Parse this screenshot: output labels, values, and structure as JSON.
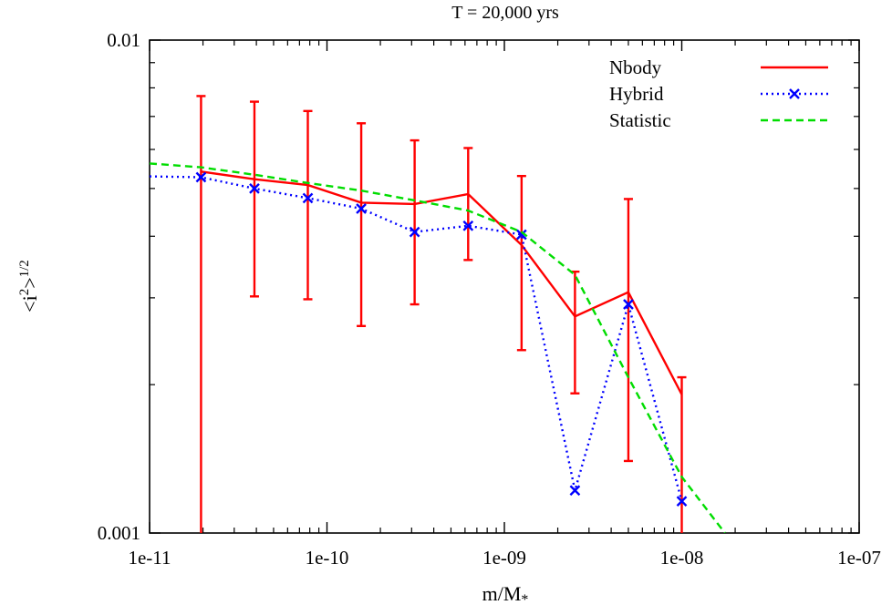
{
  "chart_data": {
    "type": "line",
    "title": "T = 20,000 yrs",
    "xlabel": "m/M",
    "xlabel_subscript": "*",
    "ylabel": {
      "base": "<i",
      "sup": "2",
      "close": ">",
      "exp": "1/2"
    },
    "x_scale": "log",
    "y_scale": "log",
    "xlim": [
      1e-11,
      1e-07
    ],
    "ylim": [
      0.001,
      0.01
    ],
    "x_ticks": [
      {
        "value": 1e-11,
        "label": "1e-11"
      },
      {
        "value": 1e-10,
        "label": "1e-10"
      },
      {
        "value": 1e-09,
        "label": "1e-09"
      },
      {
        "value": 1e-08,
        "label": "1e-08"
      },
      {
        "value": 1e-07,
        "label": "1e-07"
      }
    ],
    "y_ticks": [
      {
        "value": 0.001,
        "label": "0.001"
      },
      {
        "value": 0.01,
        "label": "0.01"
      }
    ],
    "grid": false,
    "legend_position": "top-right",
    "series": [
      {
        "name": "Nbody",
        "color": "#ff0000",
        "style": "solid-with-errorbars",
        "points": [
          {
            "x": 1.95e-11,
            "y": 0.00541,
            "ylo": 0.0009,
            "yhi": 0.0077
          },
          {
            "x": 3.9e-11,
            "y": 0.00522,
            "ylo": 0.00302,
            "yhi": 0.0075
          },
          {
            "x": 7.8e-11,
            "y": 0.00508,
            "ylo": 0.00298,
            "yhi": 0.00718
          },
          {
            "x": 1.56e-10,
            "y": 0.00468,
            "ylo": 0.00263,
            "yhi": 0.00678
          },
          {
            "x": 3.12e-10,
            "y": 0.00465,
            "ylo": 0.00291,
            "yhi": 0.00626
          },
          {
            "x": 6.25e-10,
            "y": 0.00487,
            "ylo": 0.00358,
            "yhi": 0.00604
          },
          {
            "x": 1.25e-09,
            "y": 0.00384,
            "ylo": 0.00235,
            "yhi": 0.0053
          },
          {
            "x": 2.5e-09,
            "y": 0.00275,
            "ylo": 0.00192,
            "yhi": 0.00339
          },
          {
            "x": 5e-09,
            "y": 0.00308,
            "ylo": 0.0014,
            "yhi": 0.00476
          },
          {
            "x": 1e-08,
            "y": 0.00191,
            "ylo": 0.0009,
            "yhi": 0.00207
          }
        ]
      },
      {
        "name": "Hybrid",
        "color": "#0000ff",
        "style": "dotted-with-x-markers",
        "points": [
          {
            "x": 1e-11,
            "y": 0.00529
          },
          {
            "x": 1.95e-11,
            "y": 0.00527
          },
          {
            "x": 3.9e-11,
            "y": 0.005
          },
          {
            "x": 7.8e-11,
            "y": 0.00478
          },
          {
            "x": 1.56e-10,
            "y": 0.00455
          },
          {
            "x": 3.12e-10,
            "y": 0.00408
          },
          {
            "x": 6.25e-10,
            "y": 0.0042
          },
          {
            "x": 1.25e-09,
            "y": 0.00403
          },
          {
            "x": 2.5e-09,
            "y": 0.00122
          },
          {
            "x": 5e-09,
            "y": 0.00291
          },
          {
            "x": 1e-08,
            "y": 0.00116
          }
        ]
      },
      {
        "name": "Statistic",
        "color": "#00dd00",
        "style": "dashed",
        "points": [
          {
            "x": 1e-11,
            "y": 0.00562
          },
          {
            "x": 1.95e-11,
            "y": 0.00552
          },
          {
            "x": 3.9e-11,
            "y": 0.00533
          },
          {
            "x": 7.8e-11,
            "y": 0.00513
          },
          {
            "x": 1.56e-10,
            "y": 0.00495
          },
          {
            "x": 3.12e-10,
            "y": 0.00473
          },
          {
            "x": 6.25e-10,
            "y": 0.00451
          },
          {
            "x": 1.25e-09,
            "y": 0.00408
          },
          {
            "x": 2.5e-09,
            "y": 0.00334
          },
          {
            "x": 5e-09,
            "y": 0.00207
          },
          {
            "x": 1e-08,
            "y": 0.0013
          },
          {
            "x": 1.75e-08,
            "y": 0.001
          }
        ]
      }
    ]
  }
}
